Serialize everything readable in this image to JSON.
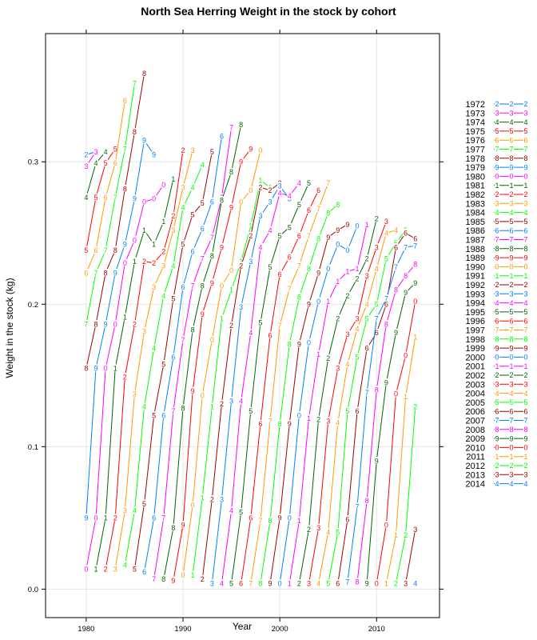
{
  "chart_data": {
    "type": "line",
    "title": "North Sea Herring Weight in the stock by cohort",
    "xlabel": "Year",
    "ylabel": "Weight in the stock (kg)",
    "xlim": [
      1975.8,
      2016.5
    ],
    "ylim": [
      -0.02,
      0.39
    ],
    "x_ticks": [
      1980,
      1990,
      2000,
      2010
    ],
    "y_ticks": [
      0.0,
      0.1,
      0.2,
      0.3
    ],
    "x_tick_labels": [
      "1980",
      "1990",
      "2000",
      "2010"
    ],
    "y_tick_labels": [
      "0.0",
      "0.1",
      "0.2",
      "0.3"
    ],
    "grid": true,
    "legend_position": "right",
    "age_to_weight": [
      0.014,
      0.05,
      0.155,
      0.236,
      0.275,
      0.3,
      0.318,
      0.33
    ],
    "colors": [
      "#0080ff",
      "#ff00ff",
      "#006400",
      "#ff0000",
      "#ff9900",
      "#00ff00",
      "#a00000",
      "#0080ff",
      "#ff00ff",
      "#006400",
      "#ff0000",
      "#ff9900",
      "#00ff00",
      "#a00000",
      "#0080ff",
      "#ff00ff",
      "#006400",
      "#ff0000",
      "#ff9900",
      "#00ff00",
      "#a00000",
      "#0080ff",
      "#ff00ff",
      "#006400",
      "#ff0000",
      "#ff9900",
      "#00ff00",
      "#a00000",
      "#0080ff",
      "#ff00ff",
      "#006400",
      "#ff0000",
      "#ff9900",
      "#00ff00",
      "#a00000",
      "#0080ff",
      "#ff00ff",
      "#006400",
      "#ff0000",
      "#ff9900",
      "#00ff00",
      "#a00000",
      "#0080ff"
    ],
    "symbols": [
      "2",
      "3",
      "4",
      "5",
      "6",
      "7",
      "8",
      "9",
      "0",
      "1",
      "2",
      "3",
      "4",
      "5",
      "6",
      "7",
      "8",
      "9",
      "0",
      "1",
      "2",
      "3",
      "4",
      "5",
      "6",
      "7",
      "8",
      "9",
      "0",
      "1",
      "2",
      "3",
      "4",
      "5",
      "6",
      "7",
      "8",
      "9",
      "0",
      "1",
      "2",
      "3",
      "4"
    ],
    "series": [
      {
        "name": "1972",
        "x": [
          1980,
          1981
        ],
        "values": [
          0.305,
          0.307
        ]
      },
      {
        "name": "1973",
        "x": [
          1980,
          1981
        ],
        "values": [
          0.297,
          0.307
        ]
      },
      {
        "name": "1974",
        "x": [
          1980,
          1981,
          1982
        ],
        "values": [
          0.275,
          0.299,
          0.307
        ]
      },
      {
        "name": "1975",
        "x": [
          1980,
          1981,
          1982,
          1983
        ],
        "values": [
          0.238,
          0.275,
          0.299,
          0.309
        ]
      },
      {
        "name": "1976",
        "x": [
          1980,
          1981,
          1982,
          1983,
          1984
        ],
        "values": [
          0.222,
          0.238,
          0.275,
          0.299,
          0.343
        ]
      },
      {
        "name": "1977",
        "x": [
          1980,
          1981,
          1982,
          1983,
          1984,
          1985
        ],
        "values": [
          0.186,
          0.222,
          0.238,
          0.275,
          0.309,
          0.355
        ]
      },
      {
        "name": "1978",
        "x": [
          1980,
          1981,
          1982,
          1983,
          1984,
          1985,
          1986
        ],
        "values": [
          0.155,
          0.186,
          0.222,
          0.238,
          0.281,
          0.321,
          0.362
        ]
      },
      {
        "name": "1979",
        "x": [
          1980,
          1981,
          1982,
          1983,
          1984,
          1985,
          1986,
          1987
        ],
        "values": [
          0.05,
          0.155,
          0.186,
          0.222,
          0.242,
          0.274,
          0.315,
          0.305
        ]
      },
      {
        "name": "1980",
        "x": [
          1980,
          1981,
          1982,
          1983,
          1984,
          1985,
          1986,
          1987,
          1988
        ],
        "values": [
          0.014,
          0.05,
          0.155,
          0.186,
          0.229,
          0.245,
          0.272,
          0.274,
          0.284
        ]
      },
      {
        "name": "1981",
        "x": [
          1981,
          1982,
          1983,
          1984,
          1985,
          1986,
          1987,
          1988,
          1989
        ],
        "values": [
          0.014,
          0.05,
          0.155,
          0.191,
          0.23,
          0.252,
          0.242,
          0.258,
          0.288
        ]
      },
      {
        "name": "1982",
        "x": [
          1982,
          1983,
          1984,
          1985,
          1986,
          1987,
          1988,
          1989,
          1990
        ],
        "values": [
          0.014,
          0.05,
          0.149,
          0.186,
          0.23,
          0.229,
          0.237,
          0.262,
          0.308
        ]
      },
      {
        "name": "1983",
        "x": [
          1983,
          1984,
          1985,
          1986,
          1987,
          1988,
          1989,
          1990,
          1991
        ],
        "values": [
          0.014,
          0.055,
          0.137,
          0.181,
          0.212,
          0.227,
          0.252,
          0.282,
          0.308
        ]
      },
      {
        "name": "1984",
        "x": [
          1984,
          1985,
          1986,
          1987,
          1988,
          1989,
          1990,
          1991,
          1992
        ],
        "values": [
          0.017,
          0.055,
          0.128,
          0.169,
          0.206,
          0.227,
          0.268,
          0.282,
          0.298
        ]
      },
      {
        "name": "1985",
        "x": [
          1985,
          1986,
          1987,
          1988,
          1989,
          1990,
          1991,
          1992,
          1993
        ],
        "values": [
          0.014,
          0.06,
          0.122,
          0.158,
          0.204,
          0.242,
          0.263,
          0.271,
          0.307
        ]
      },
      {
        "name": "1986",
        "x": [
          1986,
          1987,
          1988,
          1989,
          1990,
          1991,
          1992,
          1993,
          1994
        ],
        "values": [
          0.012,
          0.05,
          0.122,
          0.163,
          0.212,
          0.237,
          0.253,
          0.272,
          0.318
        ]
      },
      {
        "name": "1987",
        "x": [
          1987,
          1988,
          1989,
          1990,
          1991,
          1992,
          1993,
          1994,
          1995
        ],
        "values": [
          0.007,
          0.05,
          0.125,
          0.175,
          0.213,
          0.232,
          0.247,
          0.275,
          0.324
        ]
      },
      {
        "name": "1988",
        "x": [
          1988,
          1989,
          1990,
          1991,
          1992,
          1993,
          1994,
          1995,
          1996
        ],
        "values": [
          0.007,
          0.043,
          0.127,
          0.182,
          0.213,
          0.234,
          0.273,
          0.293,
          0.326
        ]
      },
      {
        "name": "1989",
        "x": [
          1989,
          1990,
          1991,
          1992,
          1993,
          1994,
          1995,
          1996,
          1997
        ],
        "values": [
          0.006,
          0.045,
          0.139,
          0.193,
          0.215,
          0.24,
          0.268,
          0.3,
          0.309
        ]
      },
      {
        "name": "1990",
        "x": [
          1990,
          1991,
          1992,
          1993,
          1994,
          1995,
          1996,
          1997,
          1998
        ],
        "values": [
          0.01,
          0.059,
          0.136,
          0.175,
          0.213,
          0.224,
          0.272,
          0.28,
          0.308
        ]
      },
      {
        "name": "1991",
        "x": [
          1991,
          1992,
          1993,
          1994,
          1995,
          1996,
          1997,
          1998,
          1999
        ],
        "values": [
          0.01,
          0.064,
          0.128,
          0.19,
          0.21,
          0.23,
          0.255,
          0.287,
          0.282
        ]
      },
      {
        "name": "1992",
        "x": [
          1992,
          1993,
          1994,
          1995,
          1996,
          1997,
          1998,
          1999,
          2000
        ],
        "values": [
          0.007,
          0.063,
          0.13,
          0.185,
          0.227,
          0.248,
          0.282,
          0.28,
          0.285
        ]
      },
      {
        "name": "1993",
        "x": [
          1993,
          1994,
          1995,
          1996,
          1997,
          1998,
          1999,
          2000,
          2001
        ],
        "values": [
          0.004,
          0.063,
          0.132,
          0.198,
          0.23,
          0.262,
          0.272,
          0.283,
          0.274
        ]
      },
      {
        "name": "1994",
        "x": [
          1994,
          1995,
          1996,
          1997,
          1998,
          1999,
          2000,
          2001,
          2002
        ],
        "values": [
          0.004,
          0.055,
          0.132,
          0.18,
          0.24,
          0.252,
          0.278,
          0.276,
          0.285
        ]
      },
      {
        "name": "1995",
        "x": [
          1995,
          1996,
          1997,
          1998,
          1999,
          2000,
          2001,
          2002,
          2003
        ],
        "values": [
          0.004,
          0.054,
          0.125,
          0.187,
          0.226,
          0.248,
          0.254,
          0.27,
          0.285
        ]
      },
      {
        "name": "1996",
        "x": [
          1996,
          1997,
          1998,
          1999,
          2000,
          2001,
          2002,
          2003,
          2004
        ],
        "values": [
          0.004,
          0.05,
          0.116,
          0.178,
          0.221,
          0.233,
          0.248,
          0.266,
          0.28
        ]
      },
      {
        "name": "1997",
        "x": [
          1997,
          1998,
          1999,
          2000,
          2001,
          2002,
          2003,
          2004,
          2005
        ],
        "values": [
          0.004,
          0.048,
          0.118,
          0.185,
          0.211,
          0.227,
          0.248,
          0.267,
          0.285
        ]
      },
      {
        "name": "1998",
        "x": [
          1998,
          1999,
          2000,
          2001,
          2002,
          2003,
          2004,
          2005,
          2006
        ],
        "values": [
          0.004,
          0.048,
          0.116,
          0.172,
          0.205,
          0.225,
          0.246,
          0.264,
          0.27
        ]
      },
      {
        "name": "1999",
        "x": [
          1999,
          2000,
          2001,
          2002,
          2003,
          2004,
          2005,
          2006,
          2007
        ],
        "values": [
          0.004,
          0.05,
          0.116,
          0.172,
          0.2,
          0.222,
          0.247,
          0.252,
          0.256
        ]
      },
      {
        "name": "2000",
        "x": [
          2000,
          2001,
          2002,
          2003,
          2004,
          2005,
          2006,
          2007,
          2008
        ],
        "values": [
          0.004,
          0.05,
          0.122,
          0.173,
          0.202,
          0.225,
          0.242,
          0.238,
          0.255
        ]
      },
      {
        "name": "2001",
        "x": [
          2001,
          2002,
          2003,
          2004,
          2005,
          2006,
          2007,
          2008,
          2009
        ],
        "values": [
          0.004,
          0.048,
          0.12,
          0.165,
          0.202,
          0.216,
          0.223,
          0.225,
          0.256
        ]
      },
      {
        "name": "2002",
        "x": [
          2002,
          2003,
          2004,
          2005,
          2006,
          2007,
          2008,
          2009,
          2010
        ],
        "values": [
          0.004,
          0.042,
          0.119,
          0.162,
          0.19,
          0.206,
          0.218,
          0.232,
          0.26
        ]
      },
      {
        "name": "2003",
        "x": [
          2003,
          2004,
          2005,
          2006,
          2007,
          2008,
          2009,
          2010,
          2011
        ],
        "values": [
          0.004,
          0.043,
          0.118,
          0.155,
          0.179,
          0.19,
          0.22,
          0.24,
          0.258
        ]
      },
      {
        "name": "2004",
        "x": [
          2004,
          2005,
          2006,
          2007,
          2008,
          2009,
          2010,
          2011,
          2012
        ],
        "values": [
          0.004,
          0.04,
          0.117,
          0.158,
          0.183,
          0.2,
          0.225,
          0.25,
          0.252
        ]
      },
      {
        "name": "2005",
        "x": [
          2005,
          2006,
          2007,
          2008,
          2009,
          2010,
          2011,
          2012,
          2013
        ],
        "values": [
          0.004,
          0.04,
          0.125,
          0.163,
          0.19,
          0.2,
          0.232,
          0.243,
          0.252
        ]
      },
      {
        "name": "2006",
        "x": [
          2006,
          2007,
          2008,
          2009,
          2010,
          2011,
          2012,
          2013,
          2014
        ],
        "values": [
          0.004,
          0.049,
          0.125,
          0.169,
          0.18,
          0.2,
          0.24,
          0.25,
          0.246
        ]
      },
      {
        "name": "2007",
        "x": [
          2007,
          2008,
          2009,
          2010,
          2011,
          2012,
          2013,
          2014
        ],
        "values": [
          0.005,
          0.058,
          0.138,
          0.19,
          0.204,
          0.226,
          0.24,
          0.241
        ]
      },
      {
        "name": "2008",
        "x": [
          2008,
          2009,
          2010,
          2011,
          2012,
          2013,
          2014
        ],
        "values": [
          0.005,
          0.062,
          0.14,
          0.186,
          0.21,
          0.22,
          0.228
        ]
      },
      {
        "name": "2009",
        "x": [
          2009,
          2010,
          2011,
          2012,
          2013,
          2014
        ],
        "values": [
          0.004,
          0.09,
          0.145,
          0.18,
          0.208,
          0.215
        ]
      },
      {
        "name": "2010",
        "x": [
          2010,
          2011,
          2012,
          2013,
          2014
        ],
        "values": [
          0.004,
          0.045,
          0.137,
          0.164,
          0.202
        ]
      },
      {
        "name": "2011",
        "x": [
          2011,
          2012,
          2013,
          2014
        ],
        "values": [
          0.004,
          0.038,
          0.135,
          0.177
        ]
      },
      {
        "name": "2012",
        "x": [
          2012,
          2013,
          2014
        ],
        "values": [
          0.004,
          0.038,
          0.128
        ]
      },
      {
        "name": "2013",
        "x": [
          2013,
          2014
        ],
        "values": [
          0.004,
          0.042
        ]
      },
      {
        "name": "2014",
        "x": [
          2014
        ],
        "values": [
          0.004
        ]
      }
    ]
  }
}
